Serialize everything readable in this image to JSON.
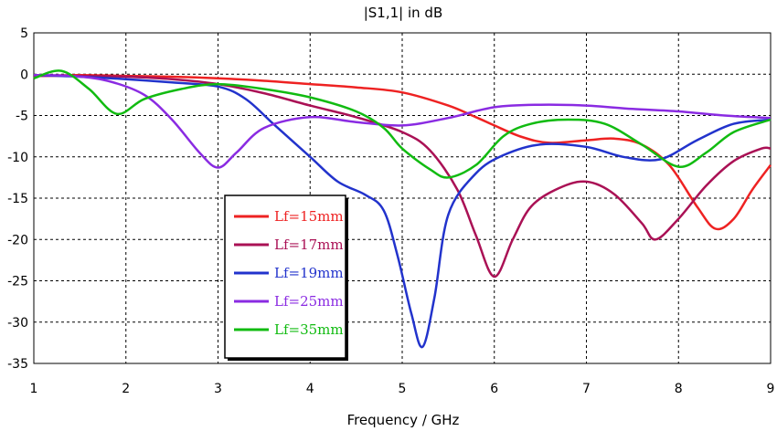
{
  "chart_data": {
    "type": "line",
    "title": "|S1,1| in dB",
    "xlabel": "Frequency / GHz",
    "ylabel": "",
    "xlim": [
      1,
      9
    ],
    "ylim": [
      -35,
      5
    ],
    "xticks": [
      "1",
      "2",
      "3",
      "4",
      "5",
      "6",
      "7",
      "8",
      "9"
    ],
    "yticks": [
      "5",
      "0",
      "-5",
      "-10",
      "-15",
      "-20",
      "-25",
      "-30",
      "-35"
    ],
    "grid": true,
    "legend_position": "bottom-left",
    "series": [
      {
        "name": "Lf=15mm",
        "color": "#ee2222",
        "x": [
          1.0,
          1.5,
          2.0,
          2.5,
          3.0,
          3.5,
          4.0,
          4.5,
          5.0,
          5.5,
          5.8,
          6.0,
          6.3,
          6.6,
          7.0,
          7.3,
          7.6,
          7.9,
          8.2,
          8.4,
          8.6,
          8.8,
          9.0
        ],
        "y": [
          -0.2,
          -0.1,
          -0.2,
          -0.3,
          -0.5,
          -0.8,
          -1.2,
          -1.6,
          -2.2,
          -3.8,
          -5.2,
          -6.2,
          -7.6,
          -8.3,
          -8.0,
          -7.8,
          -8.5,
          -11.0,
          -16.0,
          -18.7,
          -17.5,
          -14.0,
          -11.0
        ]
      },
      {
        "name": "Lf=17mm",
        "color": "#aa1155",
        "x": [
          1.0,
          1.5,
          2.0,
          2.5,
          3.0,
          3.5,
          4.0,
          4.5,
          5.0,
          5.3,
          5.6,
          5.8,
          6.0,
          6.2,
          6.4,
          6.7,
          7.0,
          7.3,
          7.6,
          7.75,
          8.0,
          8.3,
          8.6,
          8.9,
          9.0
        ],
        "y": [
          -0.2,
          -0.2,
          -0.3,
          -0.6,
          -1.2,
          -2.3,
          -3.8,
          -5.2,
          -7.0,
          -9.2,
          -14.0,
          -19.5,
          -24.5,
          -20.0,
          -16.0,
          -13.8,
          -13.0,
          -14.5,
          -18.0,
          -20.0,
          -17.5,
          -13.5,
          -10.5,
          -9.0,
          -9.0
        ]
      },
      {
        "name": "Lf=19mm",
        "color": "#2233cc",
        "x": [
          1.0,
          1.5,
          2.0,
          2.5,
          3.0,
          3.3,
          3.6,
          4.0,
          4.3,
          4.6,
          4.8,
          4.95,
          5.1,
          5.22,
          5.35,
          5.5,
          5.8,
          6.1,
          6.5,
          7.0,
          7.4,
          7.8,
          8.2,
          8.6,
          9.0
        ],
        "y": [
          -0.1,
          -0.3,
          -0.6,
          -1.0,
          -1.5,
          -3.0,
          -6.0,
          -10.0,
          -13.0,
          -14.6,
          -16.5,
          -22.0,
          -29.0,
          -33.0,
          -27.0,
          -17.0,
          -12.0,
          -9.8,
          -8.5,
          -8.8,
          -10.0,
          -10.3,
          -8.0,
          -6.0,
          -5.5
        ]
      },
      {
        "name": "Lf=25mm",
        "color": "#8a2be2",
        "x": [
          1.0,
          1.4,
          1.8,
          2.2,
          2.5,
          2.8,
          3.0,
          3.2,
          3.5,
          4.0,
          4.5,
          5.0,
          5.5,
          6.0,
          6.5,
          7.0,
          7.5,
          8.0,
          8.5,
          9.0
        ],
        "y": [
          -0.1,
          -0.2,
          -0.8,
          -2.5,
          -5.5,
          -9.5,
          -11.3,
          -9.5,
          -6.5,
          -5.2,
          -5.8,
          -6.2,
          -5.3,
          -4.0,
          -3.7,
          -3.8,
          -4.2,
          -4.5,
          -5.0,
          -5.3
        ]
      },
      {
        "name": "Lf=35mm",
        "color": "#11bb11",
        "x": [
          1.0,
          1.3,
          1.6,
          1.9,
          2.2,
          2.6,
          3.0,
          3.5,
          4.0,
          4.5,
          4.8,
          5.0,
          5.3,
          5.5,
          5.8,
          6.1,
          6.4,
          6.8,
          7.2,
          7.6,
          8.0,
          8.3,
          8.6,
          9.0
        ],
        "y": [
          -0.5,
          0.4,
          -1.8,
          -4.8,
          -3.0,
          -1.8,
          -1.2,
          -1.8,
          -2.8,
          -4.5,
          -6.5,
          -9.0,
          -11.5,
          -12.5,
          -11.0,
          -7.5,
          -6.0,
          -5.5,
          -6.0,
          -8.5,
          -11.2,
          -9.5,
          -7.0,
          -5.5
        ]
      }
    ]
  }
}
